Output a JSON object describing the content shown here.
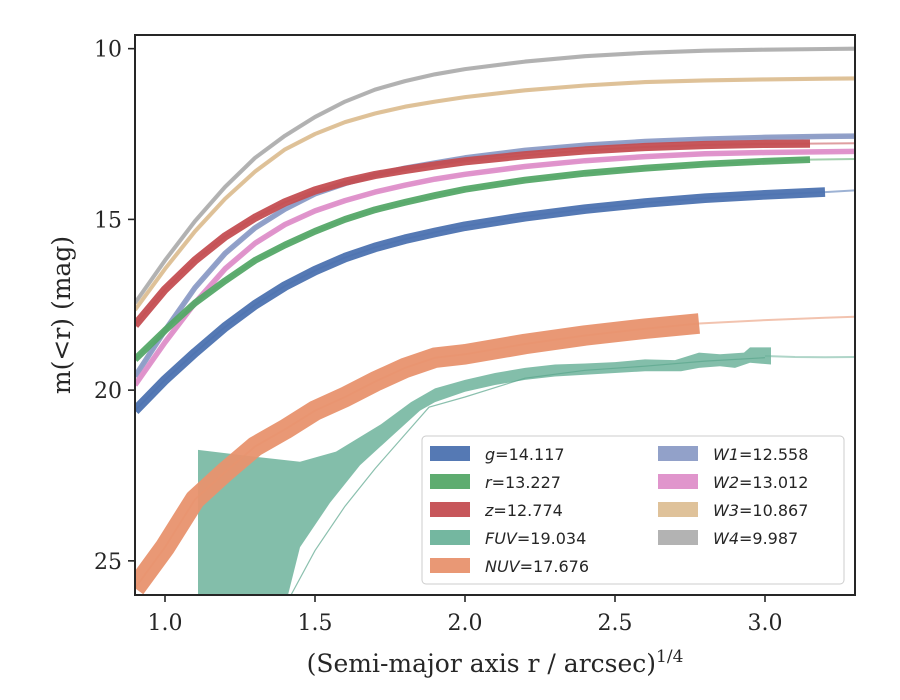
{
  "chart_data": {
    "type": "line",
    "ylabel": "m(<r) (mag)",
    "xlabel": "(Semi-major axis r / arcsec)",
    "xlabel_superscript": "1/4",
    "xlim": [
      0.9,
      3.3
    ],
    "ylim": [
      26.0,
      9.6
    ],
    "y_inverted": true,
    "xticks": [
      "1.0",
      "1.5",
      "2.0",
      "2.5",
      "3.0"
    ],
    "yticks": [
      "10",
      "15",
      "20",
      "25"
    ],
    "grid": false,
    "legend_placement": "lower-right",
    "legend": [
      {
        "band": "g",
        "value": "14.117",
        "color": "#4c72b0"
      },
      {
        "band": "r",
        "value": "13.227",
        "color": "#55a868"
      },
      {
        "band": "z",
        "value": "12.774",
        "color": "#c44e52"
      },
      {
        "band": "FUV",
        "value": "19.034",
        "color": "#6db39b"
      },
      {
        "band": "NUV",
        "value": "17.676",
        "color": "#e8926e"
      },
      {
        "band": "W1",
        "value": "12.558",
        "color": "#8c9cc6"
      },
      {
        "band": "W2",
        "value": "13.012",
        "color": "#de8fc9"
      },
      {
        "band": "W3",
        "value": "10.867",
        "color": "#ddbf95"
      },
      {
        "band": "W4",
        "value": "9.987",
        "color": "#afafaf"
      }
    ],
    "series": [
      {
        "key": "W4",
        "color": "#afafaf",
        "band_width": 0.06,
        "band_until": 3.3,
        "x": [
          0.9,
          1.0,
          1.1,
          1.2,
          1.3,
          1.4,
          1.5,
          1.6,
          1.7,
          1.8,
          1.9,
          2.0,
          2.2,
          2.4,
          2.6,
          2.8,
          3.0,
          3.2,
          3.3
        ],
        "y": [
          17.45,
          16.2,
          15.05,
          14.05,
          13.2,
          12.55,
          12.0,
          11.55,
          11.2,
          10.95,
          10.75,
          10.6,
          10.38,
          10.22,
          10.12,
          10.06,
          10.03,
          10.01,
          10.0
        ]
      },
      {
        "key": "W3",
        "color": "#ddbf95",
        "band_width": 0.06,
        "band_until": 3.3,
        "x": [
          0.9,
          1.0,
          1.1,
          1.2,
          1.3,
          1.4,
          1.5,
          1.6,
          1.7,
          1.8,
          1.9,
          2.0,
          2.2,
          2.4,
          2.6,
          2.8,
          3.0,
          3.2,
          3.3
        ],
        "y": [
          17.65,
          16.45,
          15.35,
          14.4,
          13.6,
          12.95,
          12.5,
          12.15,
          11.9,
          11.7,
          11.55,
          11.42,
          11.22,
          11.08,
          10.98,
          10.93,
          10.9,
          10.88,
          10.87
        ]
      },
      {
        "key": "W1",
        "color": "#8c9cc6",
        "band_width": 0.08,
        "band_until": 3.3,
        "x": [
          0.9,
          1.0,
          1.1,
          1.2,
          1.3,
          1.4,
          1.5,
          1.6,
          1.7,
          1.8,
          1.9,
          2.0,
          2.2,
          2.4,
          2.6,
          2.8,
          3.0,
          3.2,
          3.3
        ],
        "y": [
          19.6,
          18.25,
          17.0,
          16.0,
          15.25,
          14.7,
          14.25,
          13.95,
          13.7,
          13.5,
          13.35,
          13.2,
          12.98,
          12.83,
          12.72,
          12.65,
          12.6,
          12.57,
          12.56
        ]
      },
      {
        "key": "W2",
        "color": "#de8fc9",
        "band_width": 0.08,
        "band_until": 3.3,
        "x": [
          0.9,
          1.0,
          1.1,
          1.2,
          1.3,
          1.4,
          1.5,
          1.6,
          1.7,
          1.8,
          1.9,
          2.0,
          2.2,
          2.4,
          2.6,
          2.8,
          3.0,
          3.2,
          3.3
        ],
        "y": [
          19.85,
          18.6,
          17.45,
          16.45,
          15.7,
          15.15,
          14.75,
          14.45,
          14.2,
          14.0,
          13.82,
          13.68,
          13.45,
          13.28,
          13.16,
          13.08,
          13.04,
          13.02,
          13.01
        ]
      },
      {
        "key": "z",
        "color": "#c44e52",
        "band_width": 0.12,
        "band_until": 3.15,
        "x": [
          0.9,
          1.0,
          1.1,
          1.2,
          1.3,
          1.4,
          1.5,
          1.6,
          1.7,
          1.8,
          1.9,
          2.0,
          2.2,
          2.4,
          2.6,
          2.8,
          3.0,
          3.15,
          3.3
        ],
        "y": [
          18.1,
          17.05,
          16.2,
          15.5,
          14.95,
          14.5,
          14.15,
          13.9,
          13.7,
          13.55,
          13.42,
          13.3,
          13.12,
          12.98,
          12.88,
          12.82,
          12.79,
          12.78,
          12.77
        ]
      },
      {
        "key": "r",
        "color": "#55a868",
        "band_width": 0.1,
        "band_until": 3.15,
        "x": [
          0.9,
          1.0,
          1.1,
          1.2,
          1.3,
          1.4,
          1.5,
          1.6,
          1.7,
          1.8,
          1.9,
          2.0,
          2.2,
          2.4,
          2.6,
          2.8,
          3.0,
          3.15,
          3.3
        ],
        "y": [
          19.1,
          18.25,
          17.45,
          16.8,
          16.2,
          15.75,
          15.35,
          15.0,
          14.72,
          14.5,
          14.3,
          14.12,
          13.85,
          13.65,
          13.5,
          13.38,
          13.3,
          13.25,
          13.23
        ]
      },
      {
        "key": "g",
        "color": "#4c72b0",
        "band_width": 0.14,
        "band_until": 3.25,
        "x": [
          0.9,
          1.0,
          1.1,
          1.2,
          1.3,
          1.4,
          1.5,
          1.6,
          1.7,
          1.8,
          1.9,
          2.0,
          2.2,
          2.4,
          2.6,
          2.8,
          3.0,
          3.2,
          3.3
        ],
        "y": [
          20.6,
          19.7,
          18.9,
          18.15,
          17.5,
          16.95,
          16.5,
          16.12,
          15.82,
          15.58,
          15.38,
          15.2,
          14.92,
          14.7,
          14.52,
          14.38,
          14.28,
          14.2,
          14.15
        ]
      },
      {
        "key": "NUV",
        "color": "#e8926e",
        "band_width": 0.3,
        "band_until": 2.78,
        "x": [
          0.9,
          1.0,
          1.1,
          1.2,
          1.3,
          1.4,
          1.5,
          1.6,
          1.7,
          1.8,
          1.9,
          2.0,
          2.2,
          2.4,
          2.6,
          2.78,
          3.0,
          3.2,
          3.3
        ],
        "y": [
          25.8,
          24.6,
          23.2,
          22.4,
          21.65,
          21.15,
          20.6,
          20.2,
          19.75,
          19.35,
          19.05,
          18.95,
          18.65,
          18.4,
          18.2,
          18.05,
          17.95,
          17.88,
          17.85
        ]
      },
      {
        "key": "FUV",
        "color": "#6db39b",
        "band_width": 0,
        "band_until": 0,
        "x": [
          3.0,
          3.1,
          3.2,
          3.3
        ],
        "y": [
          19.0,
          19.03,
          19.04,
          19.03
        ]
      }
    ],
    "fuv_band": {
      "color": "#6db39b",
      "upper": [
        [
          1.11,
          21.75
        ],
        [
          1.3,
          21.95
        ],
        [
          1.45,
          22.1
        ],
        [
          1.57,
          21.8
        ],
        [
          1.72,
          21.0
        ],
        [
          1.82,
          20.35
        ],
        [
          1.9,
          19.95
        ],
        [
          2.0,
          19.7
        ],
        [
          2.1,
          19.5
        ],
        [
          2.2,
          19.35
        ],
        [
          2.3,
          19.25
        ],
        [
          2.4,
          19.22
        ],
        [
          2.5,
          19.18
        ],
        [
          2.6,
          19.1
        ],
        [
          2.7,
          19.12
        ],
        [
          2.78,
          18.9
        ],
        [
          2.85,
          18.95
        ],
        [
          2.93,
          18.9
        ],
        [
          2.95,
          18.75
        ],
        [
          3.02,
          18.75
        ]
      ],
      "lower": [
        [
          3.02,
          19.25
        ],
        [
          2.95,
          19.2
        ],
        [
          2.9,
          19.35
        ],
        [
          2.85,
          19.3
        ],
        [
          2.78,
          19.35
        ],
        [
          2.72,
          19.45
        ],
        [
          2.6,
          19.45
        ],
        [
          2.5,
          19.5
        ],
        [
          2.4,
          19.55
        ],
        [
          2.3,
          19.6
        ],
        [
          2.2,
          19.7
        ],
        [
          2.1,
          19.85
        ],
        [
          2.0,
          20.05
        ],
        [
          1.9,
          20.35
        ],
        [
          1.85,
          20.6
        ],
        [
          1.75,
          21.4
        ],
        [
          1.65,
          22.2
        ],
        [
          1.55,
          23.3
        ],
        [
          1.45,
          24.6
        ],
        [
          1.41,
          26.0
        ],
        [
          1.11,
          26.0
        ]
      ],
      "inner_line": [
        [
          1.42,
          26.0
        ],
        [
          1.5,
          24.7
        ],
        [
          1.6,
          23.4
        ],
        [
          1.7,
          22.3
        ],
        [
          1.8,
          21.3
        ],
        [
          1.88,
          20.5
        ],
        [
          2.0,
          20.2
        ],
        [
          2.2,
          19.65
        ],
        [
          2.4,
          19.42
        ],
        [
          2.6,
          19.3
        ],
        [
          2.8,
          19.15
        ],
        [
          3.0,
          19.05
        ]
      ]
    }
  }
}
